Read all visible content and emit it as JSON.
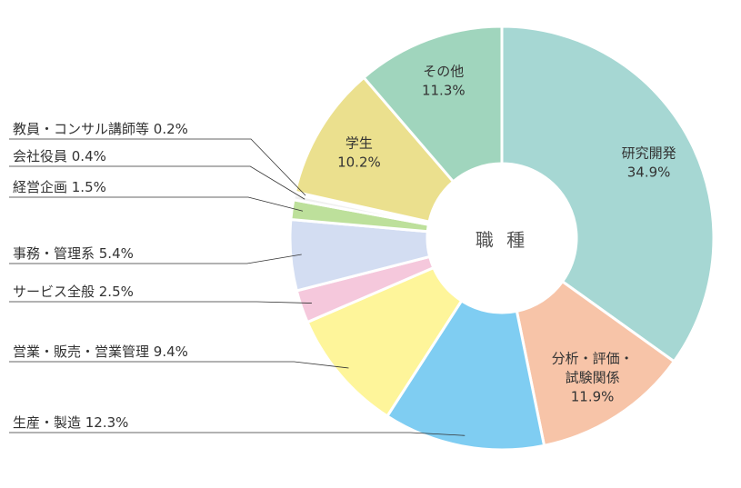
{
  "chart_data": {
    "type": "pie",
    "center_label": "職 種",
    "slices": [
      {
        "label": "研究開発",
        "value": 34.9,
        "value_text": "34.9%",
        "color": "#a6d7d3",
        "inside": true,
        "lines": [
          "研究開発",
          "34.9%"
        ]
      },
      {
        "label": "分析・評価・試験関係",
        "value": 11.9,
        "value_text": "11.9%",
        "color": "#f7c4a8",
        "inside": true,
        "lines": [
          "分析・評価・",
          "試験関係",
          "11.9%"
        ]
      },
      {
        "label": "生産・製造",
        "value": 12.3,
        "value_text": "12.3%",
        "color": "#7fcdf2",
        "inside": false,
        "outside_text": "生産・製造 12.3%"
      },
      {
        "label": "営業・販売・営業管理",
        "value": 9.4,
        "value_text": "9.4%",
        "color": "#fef59a",
        "inside": false,
        "outside_text": "営業・販売・営業管理 9.4%"
      },
      {
        "label": "サービス全般",
        "value": 2.5,
        "value_text": "2.5%",
        "color": "#f5c8dc",
        "inside": false,
        "outside_text": "サービス全般 2.5%"
      },
      {
        "label": "事務・管理系",
        "value": 5.4,
        "value_text": "5.4%",
        "color": "#d3ddf2",
        "inside": false,
        "outside_text": "事務・管理系 5.4%"
      },
      {
        "label": "経営企画",
        "value": 1.5,
        "value_text": "1.5%",
        "color": "#bde09b",
        "inside": false,
        "outside_text": "経営企画 1.5%"
      },
      {
        "label": "会社役員",
        "value": 0.4,
        "value_text": "0.4%",
        "color": "#f0f0f0",
        "inside": false,
        "outside_text": "会社役員 0.4%"
      },
      {
        "label": "教員・コンサル講師等",
        "value": 0.2,
        "value_text": "0.2%",
        "color": "#f5f5f5",
        "inside": false,
        "outside_text": "教員・コンサル講師等 0.2%"
      },
      {
        "label": "学生",
        "value": 10.2,
        "value_text": "10.2%",
        "color": "#ebe08e",
        "inside": true,
        "lines": [
          "学生",
          "10.2%"
        ]
      },
      {
        "label": "その他",
        "value": 11.3,
        "value_text": "11.3%",
        "color": "#a0d5bd",
        "inside": true,
        "lines": [
          "その他",
          "11.3%"
        ]
      }
    ]
  }
}
